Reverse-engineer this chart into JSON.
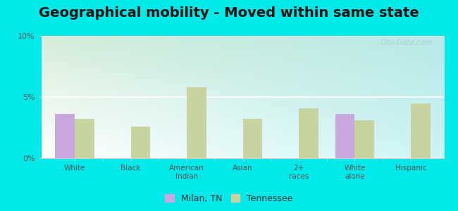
{
  "title": "Geographical mobility - Moved within same state",
  "categories": [
    "White",
    "Black",
    "American\nIndian",
    "Asian",
    "2+\nraces",
    "White\nalone",
    "Hispanic"
  ],
  "milan_values": [
    3.6,
    0,
    0,
    0,
    0,
    3.6,
    0
  ],
  "tennessee_values": [
    3.2,
    2.6,
    5.8,
    3.2,
    4.1,
    3.1,
    4.5
  ],
  "milan_color": "#c9a8e0",
  "tennessee_color": "#c8d4a0",
  "ylim": [
    0,
    10
  ],
  "yticks": [
    0,
    5,
    10
  ],
  "yticklabels": [
    "0%",
    "5%",
    "10%"
  ],
  "background_color": "#00e8e8",
  "plot_bg_topleft": "#d6edd8",
  "plot_bg_topright": "#b8e8e8",
  "plot_bg_bottomleft": "#ffffff",
  "plot_bg_bottomright": "#ccf5f5",
  "title_fontsize": 14,
  "bar_width": 0.35,
  "legend_milan": "Milan, TN",
  "legend_tennessee": "Tennessee",
  "watermark": "City-Data.com",
  "grid_color": "#e0e0e0",
  "spine_color": "#cccccc",
  "tick_label_color": "#555555"
}
